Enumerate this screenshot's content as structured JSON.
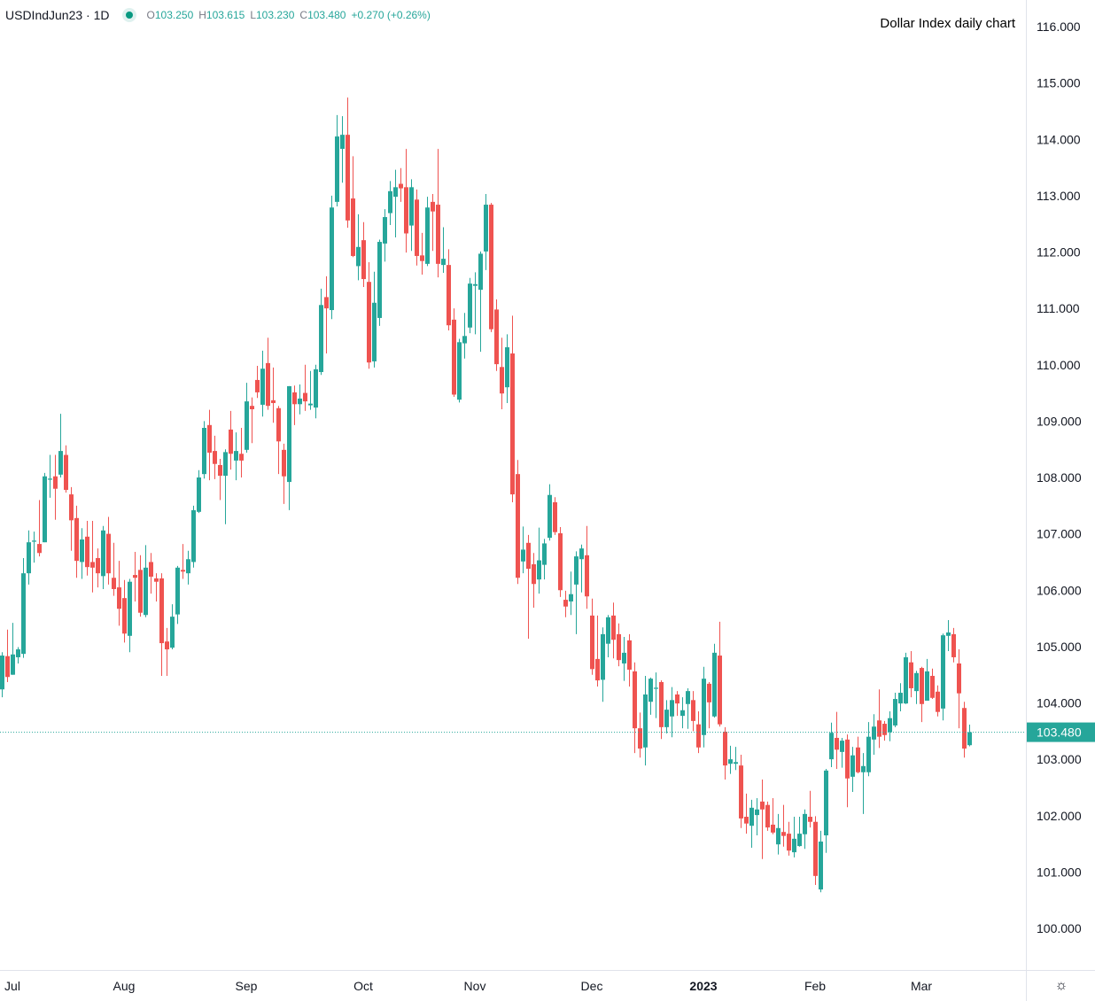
{
  "legend": {
    "symbol": "USDIndJun23 · 1D",
    "status_icon": "market-open-dot-icon",
    "open_label": "O",
    "open": "103.250",
    "high_label": "H",
    "high": "103.615",
    "low_label": "L",
    "low": "103.230",
    "close_label": "C",
    "close": "103.480",
    "change": "+0.270 (+0.26%)"
  },
  "title": "Dollar Index daily chart",
  "settings_icon": "gear-icon",
  "colors": {
    "up": "#26a69a",
    "down": "#ef5350",
    "last_price": "#26a69a",
    "grid_border": "#e0e3eb"
  },
  "chart_data": {
    "type": "candlestick",
    "title": "Dollar Index daily chart",
    "grid": false,
    "y_axis": {
      "position": "right",
      "range": [
        99.26,
        116.47
      ],
      "ticks": [
        "100.000",
        "101.000",
        "102.000",
        "103.000",
        "104.000",
        "105.000",
        "106.000",
        "107.000",
        "108.000",
        "109.000",
        "110.000",
        "111.000",
        "112.000",
        "113.000",
        "114.000",
        "115.000",
        "116.000"
      ]
    },
    "x_axis": {
      "labels": [
        {
          "text": "Jul",
          "bar": 2
        },
        {
          "text": "Aug",
          "bar": 23
        },
        {
          "text": "Sep",
          "bar": 46
        },
        {
          "text": "Oct",
          "bar": 68
        },
        {
          "text": "Nov",
          "bar": 89
        },
        {
          "text": "Dec",
          "bar": 111
        },
        {
          "text": "2023",
          "bar": 132,
          "bold": true
        },
        {
          "text": "Feb",
          "bar": 153
        },
        {
          "text": "Mar",
          "bar": 173
        }
      ]
    },
    "last_price": {
      "value": 103.48,
      "label": "103.480"
    },
    "ohlc_fields": [
      "open",
      "high",
      "low",
      "close"
    ],
    "ohlc": [
      [
        104.24,
        104.9,
        104.1,
        104.84
      ],
      [
        104.83,
        105.3,
        104.37,
        104.46
      ],
      [
        104.5,
        105.42,
        104.5,
        104.86
      ],
      [
        104.81,
        104.99,
        104.7,
        104.95
      ],
      [
        104.87,
        106.57,
        104.8,
        106.3
      ],
      [
        106.3,
        107.06,
        106.1,
        106.85
      ],
      [
        106.86,
        107.04,
        106.49,
        106.88
      ],
      [
        106.82,
        107.6,
        106.6,
        106.66
      ],
      [
        106.85,
        108.08,
        106.85,
        108.02
      ],
      [
        107.96,
        108.4,
        107.64,
        107.98
      ],
      [
        108.02,
        108.4,
        107.25,
        107.8
      ],
      [
        108.05,
        109.13,
        108.0,
        108.47
      ],
      [
        108.4,
        108.57,
        107.73,
        107.78
      ],
      [
        107.7,
        107.83,
        106.7,
        107.24
      ],
      [
        107.28,
        107.5,
        106.22,
        106.52
      ],
      [
        106.5,
        107.1,
        106.2,
        106.9
      ],
      [
        106.95,
        107.23,
        106.26,
        106.41
      ],
      [
        106.5,
        107.23,
        105.96,
        106.4
      ],
      [
        106.57,
        106.74,
        106.05,
        106.3
      ],
      [
        106.25,
        107.14,
        106.02,
        107.06
      ],
      [
        107.0,
        107.3,
        106.1,
        106.3
      ],
      [
        106.22,
        106.84,
        105.9,
        106.02
      ],
      [
        106.05,
        106.52,
        105.37,
        105.67
      ],
      [
        105.86,
        106.18,
        105.07,
        105.23
      ],
      [
        105.19,
        106.2,
        104.9,
        106.15
      ],
      [
        106.27,
        106.68,
        105.8,
        106.22
      ],
      [
        106.36,
        106.62,
        105.53,
        105.6
      ],
      [
        105.56,
        106.8,
        105.52,
        106.4
      ],
      [
        106.5,
        106.66,
        105.94,
        106.24
      ],
      [
        106.21,
        106.3,
        105.8,
        106.15
      ],
      [
        106.21,
        106.3,
        104.48,
        105.06
      ],
      [
        105.09,
        105.33,
        104.48,
        104.95
      ],
      [
        104.98,
        105.75,
        104.95,
        105.53
      ],
      [
        105.57,
        106.43,
        105.4,
        106.4
      ],
      [
        106.36,
        106.82,
        106.2,
        106.33
      ],
      [
        106.3,
        106.7,
        106.1,
        106.55
      ],
      [
        106.5,
        107.5,
        106.4,
        107.42
      ],
      [
        107.39,
        108.13,
        107.37,
        108.0
      ],
      [
        108.06,
        109.0,
        107.98,
        108.88
      ],
      [
        108.93,
        109.2,
        107.95,
        108.44
      ],
      [
        108.47,
        108.74,
        107.97,
        108.24
      ],
      [
        108.22,
        108.33,
        107.6,
        108.03
      ],
      [
        108.03,
        108.5,
        107.17,
        108.45
      ],
      [
        108.85,
        109.18,
        108.14,
        108.42
      ],
      [
        108.3,
        108.8,
        107.95,
        108.47
      ],
      [
        108.42,
        108.88,
        108.0,
        108.3
      ],
      [
        108.49,
        109.68,
        108.44,
        109.35
      ],
      [
        109.27,
        109.42,
        108.61,
        109.21
      ],
      [
        109.73,
        109.98,
        109.41,
        109.51
      ],
      [
        109.29,
        110.25,
        109.08,
        109.93
      ],
      [
        110.03,
        110.48,
        109.2,
        109.27
      ],
      [
        109.37,
        109.95,
        108.97,
        109.32
      ],
      [
        109.23,
        109.27,
        108.06,
        108.64
      ],
      [
        108.49,
        108.6,
        107.53,
        108.02
      ],
      [
        107.92,
        109.62,
        107.42,
        109.62
      ],
      [
        109.51,
        109.63,
        108.93,
        109.3
      ],
      [
        109.3,
        109.65,
        109.12,
        109.4
      ],
      [
        109.5,
        110.0,
        109.18,
        109.35
      ],
      [
        109.28,
        109.89,
        109.2,
        109.31
      ],
      [
        109.24,
        110.0,
        109.05,
        109.92
      ],
      [
        109.87,
        111.35,
        109.82,
        111.06
      ],
      [
        111.2,
        111.57,
        110.2,
        111.0
      ],
      [
        110.97,
        113.0,
        110.81,
        112.79
      ],
      [
        112.89,
        114.43,
        112.81,
        114.05
      ],
      [
        113.83,
        114.41,
        113.23,
        114.08
      ],
      [
        114.08,
        114.74,
        112.43,
        112.56
      ],
      [
        112.95,
        113.7,
        111.91,
        111.93
      ],
      [
        111.75,
        112.67,
        111.5,
        112.09
      ],
      [
        112.21,
        112.53,
        111.38,
        111.52
      ],
      [
        111.47,
        111.82,
        109.93,
        110.04
      ],
      [
        110.06,
        111.65,
        109.95,
        111.1
      ],
      [
        110.83,
        112.22,
        110.69,
        112.18
      ],
      [
        112.15,
        112.76,
        111.83,
        112.62
      ],
      [
        112.69,
        113.26,
        112.48,
        113.08
      ],
      [
        112.98,
        113.46,
        112.26,
        113.15
      ],
      [
        113.21,
        113.49,
        112.89,
        113.13
      ],
      [
        113.15,
        113.83,
        111.99,
        112.33
      ],
      [
        112.47,
        113.29,
        112.02,
        113.15
      ],
      [
        112.93,
        113.11,
        111.76,
        111.93
      ],
      [
        111.94,
        112.34,
        111.6,
        111.84
      ],
      [
        111.79,
        112.98,
        111.75,
        112.79
      ],
      [
        112.89,
        113.03,
        112.02,
        112.72
      ],
      [
        112.84,
        113.83,
        111.55,
        111.79
      ],
      [
        111.77,
        112.44,
        111.63,
        111.88
      ],
      [
        111.77,
        112.05,
        110.61,
        110.7
      ],
      [
        110.8,
        111.0,
        109.43,
        109.47
      ],
      [
        109.38,
        110.46,
        109.33,
        110.4
      ],
      [
        110.38,
        110.92,
        110.11,
        110.51
      ],
      [
        110.66,
        111.54,
        110.56,
        111.44
      ],
      [
        111.4,
        111.64,
        110.54,
        111.43
      ],
      [
        111.33,
        112.01,
        110.23,
        111.97
      ],
      [
        112.01,
        113.03,
        111.68,
        112.84
      ],
      [
        112.84,
        112.87,
        110.58,
        110.63
      ],
      [
        110.98,
        111.16,
        109.89,
        110.01
      ],
      [
        109.96,
        110.48,
        109.21,
        109.49
      ],
      [
        109.6,
        110.54,
        109.32,
        110.31
      ],
      [
        110.2,
        110.87,
        107.56,
        107.7
      ],
      [
        108.06,
        108.31,
        106.11,
        106.22
      ],
      [
        106.51,
        107.13,
        106.3,
        106.72
      ],
      [
        106.84,
        106.98,
        105.14,
        106.38
      ],
      [
        106.46,
        106.66,
        105.69,
        106.11
      ],
      [
        106.19,
        107.11,
        105.94,
        106.53
      ],
      [
        106.45,
        106.91,
        106.19,
        106.83
      ],
      [
        106.93,
        107.88,
        106.88,
        107.69
      ],
      [
        107.56,
        107.65,
        106.98,
        107.03
      ],
      [
        107.01,
        107.12,
        105.88,
        106.0
      ],
      [
        105.83,
        105.99,
        105.52,
        105.71
      ],
      [
        105.8,
        106.33,
        105.56,
        105.93
      ],
      [
        106.1,
        106.69,
        105.22,
        106.6
      ],
      [
        106.55,
        106.81,
        105.96,
        106.74
      ],
      [
        106.62,
        107.14,
        105.67,
        105.89
      ],
      [
        105.55,
        105.85,
        104.5,
        104.6
      ],
      [
        104.78,
        105.55,
        104.29,
        104.4
      ],
      [
        104.41,
        105.34,
        104.02,
        105.22
      ],
      [
        105.05,
        105.56,
        104.81,
        105.52
      ],
      [
        105.55,
        105.78,
        104.79,
        105.12
      ],
      [
        105.22,
        105.41,
        104.65,
        104.76
      ],
      [
        104.7,
        105.17,
        104.39,
        104.89
      ],
      [
        105.11,
        105.22,
        104.29,
        104.59
      ],
      [
        104.56,
        104.72,
        103.11,
        103.55
      ],
      [
        103.55,
        103.83,
        103.03,
        103.19
      ],
      [
        103.21,
        104.48,
        102.89,
        104.15
      ],
      [
        104.02,
        104.45,
        103.79,
        104.43
      ],
      [
        104.25,
        104.54,
        103.73,
        104.27
      ],
      [
        104.37,
        104.4,
        103.36,
        103.57
      ],
      [
        103.57,
        104.05,
        103.46,
        103.88
      ],
      [
        103.76,
        104.28,
        103.39,
        104.05
      ],
      [
        104.15,
        104.21,
        103.77,
        103.99
      ],
      [
        103.77,
        104.1,
        103.55,
        103.87
      ],
      [
        103.98,
        104.26,
        103.54,
        104.21
      ],
      [
        104.05,
        104.21,
        103.5,
        103.68
      ],
      [
        103.62,
        103.85,
        103.11,
        103.21
      ],
      [
        103.43,
        104.64,
        103.21,
        104.43
      ],
      [
        104.34,
        104.37,
        103.55,
        104.01
      ],
      [
        103.76,
        105.05,
        103.74,
        104.89
      ],
      [
        104.84,
        105.44,
        103.58,
        103.62
      ],
      [
        103.49,
        103.57,
        102.64,
        102.89
      ],
      [
        102.92,
        103.24,
        102.74,
        103.0
      ],
      [
        102.92,
        103.22,
        102.81,
        102.95
      ],
      [
        102.89,
        103.08,
        101.78,
        101.95
      ],
      [
        101.98,
        102.39,
        101.68,
        101.86
      ],
      [
        101.82,
        102.28,
        101.43,
        102.14
      ],
      [
        102.01,
        102.31,
        101.65,
        102.11
      ],
      [
        102.25,
        102.64,
        101.23,
        102.11
      ],
      [
        102.19,
        102.25,
        101.73,
        101.79
      ],
      [
        101.84,
        102.31,
        101.67,
        101.7
      ],
      [
        101.49,
        102.03,
        101.31,
        101.78
      ],
      [
        101.71,
        102.19,
        101.45,
        101.64
      ],
      [
        101.68,
        101.89,
        101.29,
        101.38
      ],
      [
        101.35,
        101.98,
        101.26,
        101.59
      ],
      [
        101.46,
        101.98,
        101.45,
        101.68
      ],
      [
        101.67,
        102.11,
        101.41,
        102.03
      ],
      [
        101.98,
        102.44,
        101.79,
        101.89
      ],
      [
        101.89,
        101.99,
        100.77,
        100.93
      ],
      [
        100.69,
        101.73,
        100.64,
        101.54
      ],
      [
        101.65,
        102.83,
        101.34,
        102.8
      ],
      [
        103.0,
        103.65,
        102.86,
        103.47
      ],
      [
        103.38,
        103.84,
        102.83,
        103.17
      ],
      [
        103.13,
        103.38,
        102.85,
        103.33
      ],
      [
        103.35,
        103.44,
        102.15,
        102.66
      ],
      [
        102.69,
        103.22,
        102.42,
        103.07
      ],
      [
        103.21,
        103.4,
        102.75,
        102.77
      ],
      [
        102.77,
        103.11,
        102.03,
        102.88
      ],
      [
        102.77,
        103.66,
        102.7,
        103.4
      ],
      [
        103.35,
        103.8,
        103.08,
        103.58
      ],
      [
        103.69,
        104.24,
        103.2,
        103.4
      ],
      [
        103.63,
        103.68,
        103.33,
        103.43
      ],
      [
        103.48,
        103.85,
        103.32,
        103.73
      ],
      [
        103.6,
        104.18,
        103.57,
        104.07
      ],
      [
        103.99,
        104.35,
        103.85,
        104.18
      ],
      [
        103.99,
        104.89,
        103.98,
        104.81
      ],
      [
        104.72,
        104.92,
        104.1,
        104.26
      ],
      [
        104.21,
        104.57,
        103.98,
        104.53
      ],
      [
        104.62,
        104.64,
        103.66,
        103.98
      ],
      [
        104.04,
        104.78,
        104.04,
        104.56
      ],
      [
        104.48,
        104.61,
        104.07,
        104.09
      ],
      [
        104.2,
        104.31,
        103.76,
        103.84
      ],
      [
        103.9,
        105.23,
        103.69,
        105.2
      ],
      [
        105.19,
        105.47,
        104.92,
        105.25
      ],
      [
        105.22,
        105.33,
        104.72,
        104.81
      ],
      [
        104.7,
        104.95,
        103.55,
        104.17
      ],
      [
        103.91,
        104.02,
        103.03,
        103.19
      ],
      [
        103.25,
        103.615,
        103.23,
        103.48
      ]
    ]
  }
}
